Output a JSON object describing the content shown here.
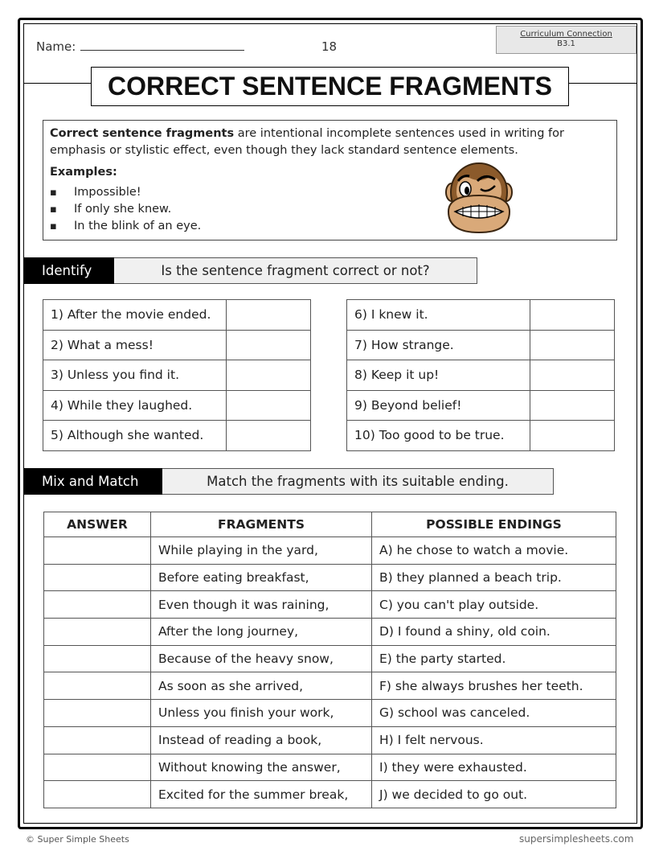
{
  "header": {
    "name_label": "Name:",
    "page_number": "18",
    "curriculum_label": "Curriculum Connection",
    "curriculum_code": "B3.1",
    "title": "CORRECT SENTENCE FRAGMENTS"
  },
  "definition": {
    "term": "Correct sentence fragments",
    "text": " are intentional incomplete sentences used in writing for emphasis or stylistic effect, even though they lack standard sentence elements.",
    "examples_label": "Examples:",
    "examples": [
      "Impossible!",
      "If only she knew.",
      "In the blink of an eye."
    ],
    "image": "winking-monkey-icon"
  },
  "identify": {
    "label": "Identify",
    "instruction": "Is the sentence fragment correct or not?",
    "left": [
      "1) After the movie ended.",
      "2) What a mess!",
      "3) Unless you find it.",
      "4) While they laughed.",
      "5) Although she wanted."
    ],
    "right": [
      "6) I knew it.",
      "7) How strange.",
      "8) Keep it up!",
      "9) Beyond belief!",
      "10) Too good to be true."
    ]
  },
  "match": {
    "label": "Mix and Match",
    "instruction": "Match the fragments with its suitable ending.",
    "headers": [
      "ANSWER",
      "FRAGMENTS",
      "POSSIBLE ENDINGS"
    ],
    "fragments": [
      "While playing in the yard,",
      "Before eating breakfast,",
      "Even though it was raining,",
      "After the long journey,",
      "Because of the heavy snow,",
      "As soon as she arrived,",
      "Unless you finish your work,",
      "Instead of reading a book,",
      "Without knowing the answer,",
      "Excited for the summer break,"
    ],
    "endings": [
      "A) he chose to watch a movie.",
      "B) they planned a beach trip.",
      "C) you can't play outside.",
      "D) I found a shiny, old coin.",
      "E) the party started.",
      "F) she always brushes her teeth.",
      "G) school was canceled.",
      "H) I felt nervous.",
      "I) they were exhausted.",
      "J) we decided to go out."
    ]
  },
  "footer": {
    "copyright": "© Super Simple Sheets",
    "site": "supersimplesheets.com"
  }
}
